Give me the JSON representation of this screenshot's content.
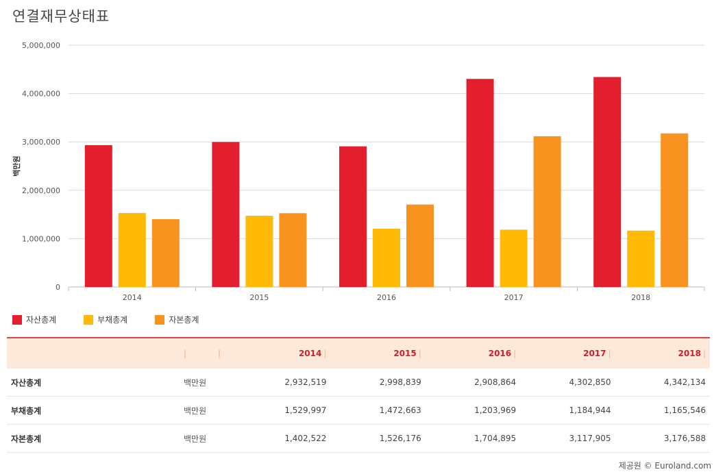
{
  "page_title": "연결재무상태표",
  "chart_data": {
    "type": "bar",
    "title": "연결재무상태표",
    "ylabel": "백만원",
    "xlabel": "",
    "ylim": [
      0,
      5000000
    ],
    "yticks": [
      0,
      1000000,
      2000000,
      3000000,
      4000000,
      5000000
    ],
    "ytick_labels": [
      "0",
      "1,000,000",
      "2,000,000",
      "3,000,000",
      "4,000,000",
      "5,000,000"
    ],
    "categories": [
      "2014",
      "2015",
      "2016",
      "2017",
      "2018"
    ],
    "series": [
      {
        "name": "자산총계",
        "color": "#e31e2d",
        "values": [
          2932519,
          2998839,
          2908864,
          4302850,
          4342134
        ]
      },
      {
        "name": "부채총계",
        "color": "#ffba08",
        "values": [
          1529997,
          1472663,
          1203969,
          1184944,
          1165546
        ]
      },
      {
        "name": "자본총계",
        "color": "#f7931e",
        "values": [
          1402522,
          1526176,
          1704895,
          3117905,
          3176588
        ]
      }
    ],
    "grid": true,
    "legend_position": "bottom-left"
  },
  "table": {
    "headers": [
      "2014",
      "2015",
      "2016",
      "2017",
      "2018"
    ],
    "rows": [
      {
        "label": "자산총계",
        "unit": "백만원",
        "values": [
          "2,932,519",
          "2,998,839",
          "2,908,864",
          "4,302,850",
          "4,342,134"
        ]
      },
      {
        "label": "부채총계",
        "unit": "백만원",
        "values": [
          "1,529,997",
          "1,472,663",
          "1,203,969",
          "1,184,944",
          "1,165,546"
        ]
      },
      {
        "label": "자본총계",
        "unit": "백만원",
        "values": [
          "1,402,522",
          "1,526,176",
          "1,704,895",
          "3,117,905",
          "3,176,588"
        ]
      }
    ]
  },
  "footer": {
    "credit": "제공원 © Euroland.com"
  }
}
